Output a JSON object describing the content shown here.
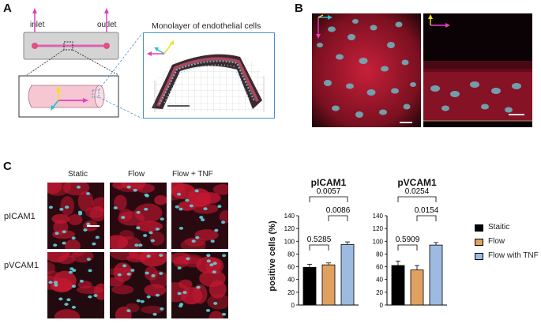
{
  "panels": {
    "A": {
      "letter": "A",
      "inlet_label": "inlet",
      "outlet_label": "outlet",
      "inset_title": "Monolayer of endothelial cells"
    },
    "B": {
      "letter": "B"
    },
    "C": {
      "letter": "C",
      "columns": [
        "Static",
        "Flow",
        "Flow + TNF"
      ],
      "rows": [
        "pICAM1",
        "pVCAM1"
      ]
    }
  },
  "colors": {
    "static": "#000000",
    "flow": "#e0a060",
    "flow_tnf": "#9dbbe0",
    "axis_magenta": "#e040c0",
    "axis_yellow": "#f0e020",
    "axis_cyan": "#30c0c8",
    "channel_pink": "#f0b8c8",
    "inset_border": "#4a90c8"
  },
  "legend": [
    "Staitic",
    "Flow",
    "Flow with TNF"
  ],
  "chart_data": [
    {
      "type": "bar",
      "title": "pICAM1",
      "ylabel": "positive cells (%)",
      "categories": [
        "Staitic",
        "Flow",
        "Flow with TNF"
      ],
      "values": [
        59,
        63,
        95
      ],
      "errors": [
        5,
        3,
        4
      ],
      "ylim": [
        0,
        140
      ],
      "yticks": [
        0,
        20,
        40,
        60,
        80,
        100,
        120,
        140
      ],
      "comparisons": [
        {
          "from": 0,
          "to": 2,
          "label": "0.0057"
        },
        {
          "from": 1,
          "to": 2,
          "label": "0.0086"
        },
        {
          "from": 0,
          "to": 1,
          "label": "0.5285"
        }
      ]
    },
    {
      "type": "bar",
      "title": "pVCAM1",
      "ylabel": "",
      "categories": [
        "Staitic",
        "Flow",
        "Flow with TNF"
      ],
      "values": [
        62,
        55,
        94
      ],
      "errors": [
        7,
        7,
        4
      ],
      "ylim": [
        0,
        140
      ],
      "yticks": [
        0,
        20,
        40,
        60,
        80,
        100,
        120,
        140
      ],
      "comparisons": [
        {
          "from": 0,
          "to": 2,
          "label": "0.0254"
        },
        {
          "from": 1,
          "to": 2,
          "label": "0.0154"
        },
        {
          "from": 0,
          "to": 1,
          "label": "0.5909"
        }
      ]
    }
  ]
}
